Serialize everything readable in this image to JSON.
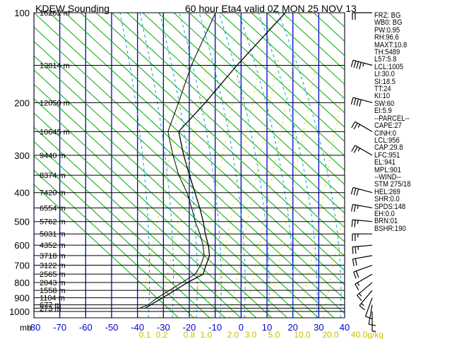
{
  "header": {
    "station": "KDEW Sounding",
    "valid": "60 hour Eta4 valid 0Z MON 25 NOV 13"
  },
  "chart_data": {
    "type": "skew-t sounding",
    "pressure_axis": {
      "label": "mb",
      "levels": [
        100,
        200,
        300,
        400,
        500,
        600,
        700,
        800,
        900,
        1000
      ],
      "range": [
        100,
        1050
      ],
      "scale": "log"
    },
    "temperature_axis": {
      "ticks": [
        -80,
        -70,
        -60,
        -50,
        -40,
        -30,
        -20,
        -10,
        0,
        10,
        20,
        30,
        40
      ],
      "range": [
        -80,
        40
      ],
      "unit": "C"
    },
    "mixing_ratio_labels": [
      "0.1",
      "0.2",
      "0.8",
      "1.0",
      "2.0",
      "3.0",
      "5.0",
      "10.0",
      "20.0",
      "40.0g/kg"
    ],
    "height_labels": [
      {
        "p": 100,
        "text": "16262 m"
      },
      {
        "p": 150,
        "text": "13814 m"
      },
      {
        "p": 200,
        "text": "12050 m"
      },
      {
        "p": 250,
        "text": "10645 m"
      },
      {
        "p": 300,
        "text": "9440 m"
      },
      {
        "p": 350,
        "text": "8374 m"
      },
      {
        "p": 400,
        "text": "7420 m"
      },
      {
        "p": 450,
        "text": "6554 m"
      },
      {
        "p": 500,
        "text": "5762 m"
      },
      {
        "p": 550,
        "text": "5031 m"
      },
      {
        "p": 600,
        "text": "4352 m"
      },
      {
        "p": 650,
        "text": "3718 m"
      },
      {
        "p": 700,
        "text": "3122 m"
      },
      {
        "p": 750,
        "text": "2565 m"
      },
      {
        "p": 800,
        "text": "2043 m"
      },
      {
        "p": 850,
        "text": "1558 m"
      },
      {
        "p": 900,
        "text": "1104 m"
      },
      {
        "p": 950,
        "text": "677 m"
      },
      {
        "p": 975,
        "text": "273 m"
      }
    ],
    "temperature_profile": [
      {
        "p": 100,
        "t": -58
      },
      {
        "p": 150,
        "t": -58
      },
      {
        "p": 200,
        "t": -57
      },
      {
        "p": 250,
        "t": -57
      },
      {
        "p": 300,
        "t": -47
      },
      {
        "p": 350,
        "t": -38
      },
      {
        "p": 400,
        "t": -30
      },
      {
        "p": 450,
        "t": -23
      },
      {
        "p": 500,
        "t": -17
      },
      {
        "p": 550,
        "t": -12
      },
      {
        "p": 600,
        "t": -7
      },
      {
        "p": 650,
        "t": -3
      },
      {
        "p": 700,
        "t": -1
      },
      {
        "p": 750,
        "t": 1
      },
      {
        "p": 800,
        "t": -2
      },
      {
        "p": 850,
        "t": -4
      },
      {
        "p": 900,
        "t": -6
      },
      {
        "p": 950,
        "t": -8
      },
      {
        "p": 975,
        "t": -9
      }
    ],
    "dewpoint_profile": [
      {
        "p": 100,
        "t": -84
      },
      {
        "p": 150,
        "t": -75
      },
      {
        "p": 200,
        "t": -67
      },
      {
        "p": 250,
        "t": -61
      },
      {
        "p": 300,
        "t": -51
      },
      {
        "p": 350,
        "t": -42
      },
      {
        "p": 400,
        "t": -33
      },
      {
        "p": 450,
        "t": -26
      },
      {
        "p": 500,
        "t": -20
      },
      {
        "p": 550,
        "t": -14
      },
      {
        "p": 600,
        "t": -9
      },
      {
        "p": 650,
        "t": -5
      },
      {
        "p": 700,
        "t": -3
      },
      {
        "p": 750,
        "t": -2
      },
      {
        "p": 800,
        "t": -4
      },
      {
        "p": 850,
        "t": -6
      },
      {
        "p": 900,
        "t": -8
      },
      {
        "p": 950,
        "t": -9
      },
      {
        "p": 975,
        "t": -11
      }
    ],
    "wind_barbs": [
      {
        "p": 100,
        "dir": 270,
        "spd": 20
      },
      {
        "p": 150,
        "dir": 285,
        "spd": 45
      },
      {
        "p": 200,
        "dir": 285,
        "spd": 40
      },
      {
        "p": 250,
        "dir": 300,
        "spd": 25
      },
      {
        "p": 300,
        "dir": 300,
        "spd": 25
      },
      {
        "p": 400,
        "dir": 285,
        "spd": 30
      },
      {
        "p": 450,
        "dir": 280,
        "spd": 25
      },
      {
        "p": 500,
        "dir": 275,
        "spd": 25
      },
      {
        "p": 550,
        "dir": 270,
        "spd": 25
      },
      {
        "p": 600,
        "dir": 265,
        "spd": 25
      },
      {
        "p": 650,
        "dir": 260,
        "spd": 20
      },
      {
        "p": 700,
        "dir": 250,
        "spd": 20
      },
      {
        "p": 750,
        "dir": 240,
        "spd": 15
      },
      {
        "p": 800,
        "dir": 230,
        "spd": 15
      },
      {
        "p": 850,
        "dir": 220,
        "spd": 15
      },
      {
        "p": 900,
        "dir": 200,
        "spd": 10
      },
      {
        "p": 950,
        "dir": 190,
        "spd": 10
      },
      {
        "p": 1000,
        "dir": 180,
        "spd": 5
      }
    ]
  },
  "indices": [
    "FRZ: BG",
    "WB0: BG",
    "PW:0.95",
    "RH:96.6",
    "MAXT:10.8",
    "TH:5489",
    "L57:5.8",
    "LCL:1005",
    "LI:30.0",
    "SI:18.5",
    "TT:24",
    "KI:10",
    "SW:60",
    "EI:5.9",
    "--PARCEL--",
    "CAPE:27",
    "CINH:0",
    "LCL:956",
    "CAP:29.8",
    "LFC:951",
    "EL:941",
    "MPL:901",
    "--WIND--",
    "STM 275/18",
    "HEL:269",
    "SHR:0.0",
    "SPDS:148",
    "EH:0.0",
    "BRN:01",
    "BSHR:190"
  ],
  "colors": {
    "isotherm": "#0000cc",
    "dry_adiabat": "#00aa00",
    "moist_adiabat": "#00a0e8",
    "mixing_ratio": "#e8e000",
    "isobar": "#000000",
    "temperature": "#000000",
    "dewpoint": "#000000",
    "mixing_label": "#c8c000"
  }
}
